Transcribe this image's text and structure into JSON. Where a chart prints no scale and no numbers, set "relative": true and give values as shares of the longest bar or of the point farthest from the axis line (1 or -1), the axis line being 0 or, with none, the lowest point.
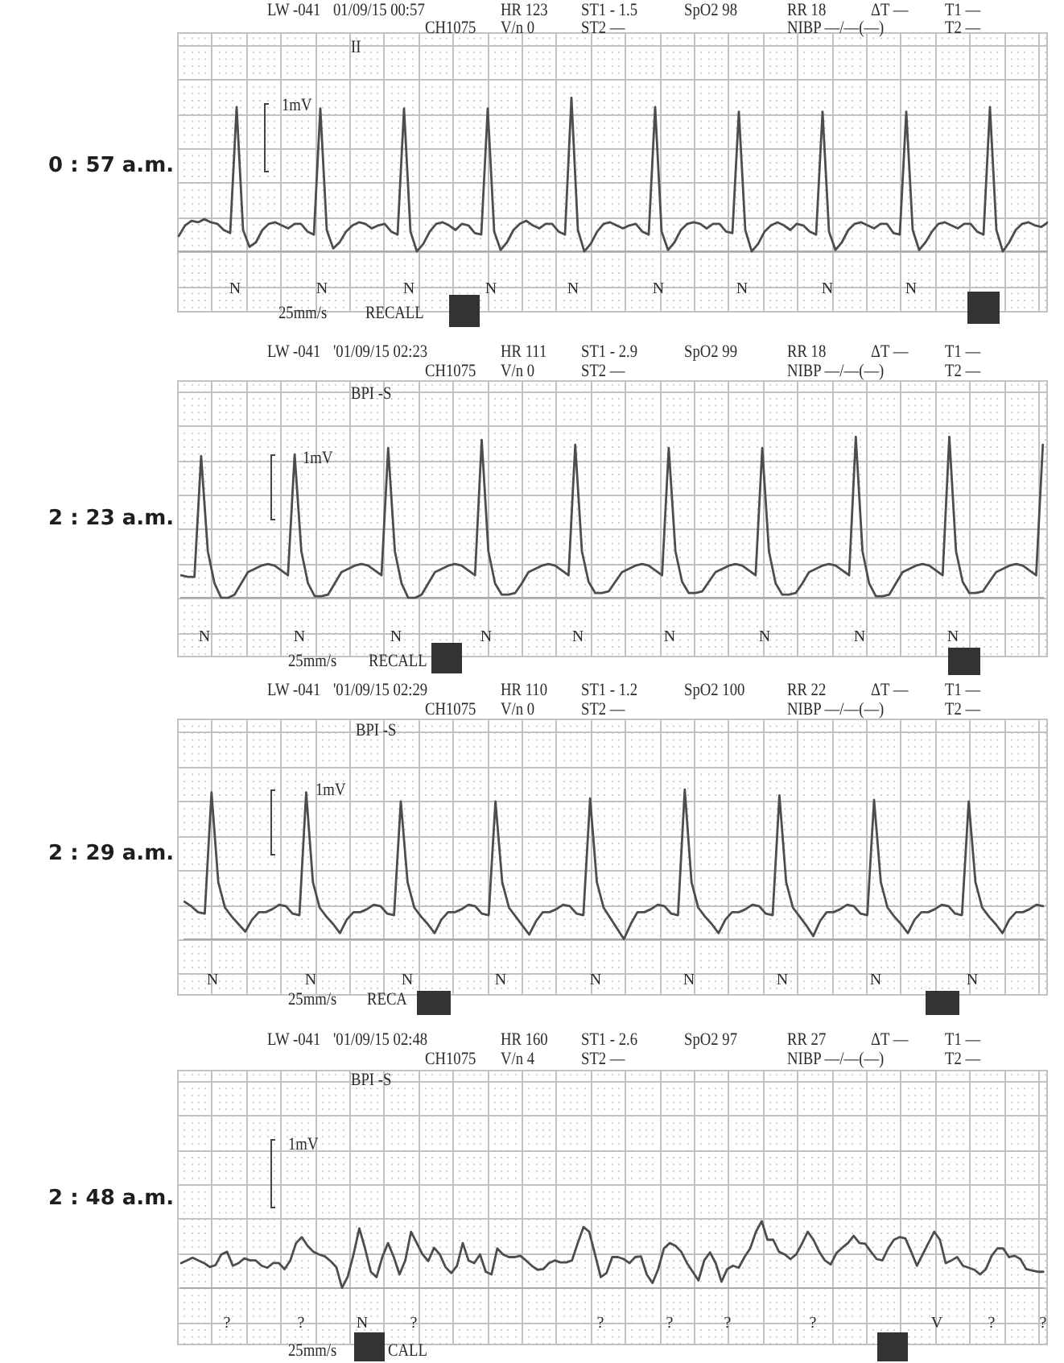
{
  "chart_data": [
    {
      "type": "line",
      "title": "0 : 57 a.m.",
      "relative": true,
      "grid": true,
      "marker": "none",
      "color": "#4d4d4d",
      "categories": [
        null,
        null,
        null,
        null,
        null,
        null,
        null,
        null,
        null,
        null,
        null,
        null,
        null,
        null,
        null,
        null,
        null,
        null,
        null,
        null,
        null,
        null,
        null,
        null,
        null,
        null,
        null,
        null,
        null,
        null,
        null,
        null,
        null,
        null,
        null,
        null,
        null,
        null,
        null,
        null,
        null,
        null,
        null,
        null,
        null,
        null,
        null,
        null,
        null,
        null,
        null,
        null,
        null,
        null,
        null,
        null,
        null,
        null,
        null,
        null,
        null,
        null,
        null,
        null,
        null,
        null,
        null,
        null,
        null,
        null,
        null,
        null,
        null,
        null,
        null,
        null,
        null,
        null,
        null,
        null,
        null,
        null,
        null,
        null,
        null,
        null,
        null,
        null,
        null,
        null,
        null,
        null,
        null,
        null,
        null,
        null,
        null,
        null,
        null,
        null,
        null,
        null,
        null,
        null,
        null,
        null,
        null,
        null,
        null,
        null,
        null,
        null,
        null,
        null,
        null,
        null,
        null,
        null,
        null,
        null,
        null,
        null,
        null,
        null,
        null,
        null,
        null,
        null,
        null,
        null,
        null,
        null,
        null,
        null,
        null,
        null
      ],
      "values": [
        0.1,
        0.17,
        0.2,
        0.19,
        0.21,
        0.19,
        0.18,
        0.14,
        0.12,
        0.94,
        0.14,
        0.03,
        0.06,
        0.14,
        0.18,
        0.19,
        0.17,
        0.15,
        0.18,
        0.18,
        0.13,
        0.11,
        0.93,
        0.14,
        0.02,
        0.06,
        0.13,
        0.17,
        0.19,
        0.18,
        0.15,
        0.17,
        0.18,
        0.13,
        0.11,
        0.93,
        0.13,
        0.0,
        0.05,
        0.13,
        0.18,
        0.19,
        0.17,
        0.14,
        0.18,
        0.17,
        0.12,
        0.11,
        0.93,
        0.13,
        0.01,
        0.06,
        0.14,
        0.18,
        0.2,
        0.17,
        0.15,
        0.18,
        0.18,
        0.13,
        0.11,
        1.0,
        0.14,
        0.0,
        0.05,
        0.13,
        0.18,
        0.19,
        0.17,
        0.15,
        0.17,
        0.18,
        0.13,
        0.11,
        0.94,
        0.13,
        0.01,
        0.06,
        0.14,
        0.18,
        0.19,
        0.18,
        0.15,
        0.18,
        0.18,
        0.13,
        0.12,
        0.91,
        0.14,
        0.0,
        0.05,
        0.13,
        0.17,
        0.19,
        0.17,
        0.14,
        0.18,
        0.17,
        0.13,
        0.11,
        0.91,
        0.13,
        0.01,
        0.06,
        0.14,
        0.18,
        0.19,
        0.17,
        0.15,
        0.18,
        0.18,
        0.12,
        0.11,
        0.91,
        0.14,
        0.01,
        0.06,
        0.13,
        0.18,
        0.19,
        0.17,
        0.15,
        0.18,
        0.18,
        0.13,
        0.11,
        0.94,
        0.14,
        0.0,
        0.06,
        0.14,
        0.18,
        0.19,
        0.17,
        0.16,
        0.19
      ],
      "annotations": [
        "LW -041",
        "01/09/15 00:57",
        "HR 123",
        "ST1 - 1.5",
        "SpO2 98",
        "RR 18",
        "ΔT —",
        "T1 —",
        "CH1075",
        "V/n 0",
        "ST2 —",
        "NIBP —/—(—)",
        "T2 —",
        "II",
        "1mV",
        "N",
        "N",
        "N",
        "N",
        "N",
        "N",
        "N",
        "N",
        "N",
        "25mm/s",
        "RECALL"
      ]
    },
    {
      "type": "line",
      "title": "2 : 23 a.m.",
      "relative": true,
      "grid": true,
      "marker": "none",
      "color": "#4d4d4d",
      "categories": [
        null,
        null,
        null,
        null,
        null,
        null,
        null,
        null,
        null,
        null,
        null,
        null,
        null,
        null,
        null,
        null,
        null,
        null,
        null,
        null,
        null,
        null,
        null,
        null,
        null,
        null,
        null,
        null,
        null,
        null,
        null,
        null,
        null,
        null,
        null,
        null,
        null,
        null,
        null,
        null,
        null,
        null,
        null,
        null,
        null,
        null,
        null,
        null,
        null,
        null,
        null,
        null,
        null,
        null,
        null,
        null,
        null,
        null,
        null,
        null,
        null,
        null,
        null,
        null,
        null,
        null,
        null,
        null,
        null,
        null,
        null,
        null,
        null,
        null,
        null,
        null,
        null,
        null,
        null,
        null,
        null,
        null,
        null,
        null,
        null,
        null,
        null,
        null,
        null,
        null,
        null,
        null,
        null,
        null,
        null,
        null,
        null,
        null,
        null,
        null,
        null,
        null,
        null,
        null,
        null,
        null,
        null,
        null,
        null,
        null,
        null,
        null,
        null,
        null,
        null,
        null,
        null,
        null,
        null,
        null,
        null,
        null,
        null,
        null,
        null,
        null,
        null,
        null,
        null,
        null
      ],
      "values": [
        0.14,
        0.13,
        0.13,
        0.88,
        0.29,
        0.09,
        0.0,
        0.0,
        0.02,
        0.09,
        0.16,
        0.18,
        0.2,
        0.21,
        0.2,
        0.17,
        0.14,
        0.89,
        0.29,
        0.09,
        0.01,
        0.01,
        0.02,
        0.09,
        0.16,
        0.18,
        0.2,
        0.21,
        0.2,
        0.17,
        0.14,
        0.93,
        0.29,
        0.09,
        0.0,
        0.0,
        0.02,
        0.09,
        0.16,
        0.18,
        0.2,
        0.21,
        0.2,
        0.17,
        0.14,
        0.98,
        0.29,
        0.09,
        0.02,
        0.02,
        0.03,
        0.09,
        0.16,
        0.18,
        0.2,
        0.21,
        0.2,
        0.17,
        0.14,
        0.95,
        0.29,
        0.1,
        0.03,
        0.03,
        0.04,
        0.1,
        0.16,
        0.18,
        0.2,
        0.21,
        0.2,
        0.17,
        0.14,
        0.93,
        0.29,
        0.1,
        0.03,
        0.03,
        0.04,
        0.1,
        0.16,
        0.18,
        0.2,
        0.21,
        0.2,
        0.17,
        0.14,
        0.93,
        0.29,
        0.09,
        0.02,
        0.02,
        0.03,
        0.09,
        0.16,
        0.18,
        0.2,
        0.21,
        0.2,
        0.17,
        0.14,
        1.0,
        0.29,
        0.09,
        0.01,
        0.01,
        0.02,
        0.09,
        0.16,
        0.18,
        0.2,
        0.21,
        0.2,
        0.17,
        0.14,
        1.0,
        0.29,
        0.1,
        0.03,
        0.03,
        0.04,
        0.1,
        0.16,
        0.18,
        0.2,
        0.21,
        0.2,
        0.17,
        0.14,
        0.95
      ],
      "annotations": [
        "LW -041",
        "'01/09/15 02:23",
        "HR 111",
        "ST1 - 2.9",
        "SpO2 99",
        "RR 18",
        "ΔT —",
        "T1 —",
        "CH1075",
        "V/n 0",
        "ST2 —",
        "NIBP —/—(—)",
        "T2 —",
        "BPI -S",
        "1mV",
        "N",
        "N",
        "N",
        "N",
        "N",
        "N",
        "N",
        "N",
        "N",
        "25mm/s",
        "RECALL"
      ]
    },
    {
      "type": "line",
      "title": "2 : 29 a.m.",
      "relative": true,
      "grid": true,
      "marker": "none",
      "color": "#4d4d4d",
      "categories": [
        null,
        null,
        null,
        null,
        null,
        null,
        null,
        null,
        null,
        null,
        null,
        null,
        null,
        null,
        null,
        null,
        null,
        null,
        null,
        null,
        null,
        null,
        null,
        null,
        null,
        null,
        null,
        null,
        null,
        null,
        null,
        null,
        null,
        null,
        null,
        null,
        null,
        null,
        null,
        null,
        null,
        null,
        null,
        null,
        null,
        null,
        null,
        null,
        null,
        null,
        null,
        null,
        null,
        null,
        null,
        null,
        null,
        null,
        null,
        null,
        null,
        null,
        null,
        null,
        null,
        null,
        null,
        null,
        null,
        null,
        null,
        null,
        null,
        null,
        null,
        null,
        null,
        null,
        null,
        null,
        null,
        null,
        null,
        null,
        null,
        null,
        null,
        null,
        null,
        null,
        null,
        null,
        null,
        null,
        null,
        null,
        null,
        null,
        null,
        null,
        null,
        null,
        null,
        null,
        null,
        null,
        null,
        null,
        null,
        null,
        null,
        null,
        null,
        null,
        null,
        null,
        null,
        null,
        null,
        null,
        null,
        null,
        null,
        null,
        null,
        null,
        null,
        null
      ],
      "values": [
        0.25,
        0.22,
        0.18,
        0.17,
        0.98,
        0.38,
        0.21,
        0.15,
        0.1,
        0.05,
        0.13,
        0.18,
        0.18,
        0.2,
        0.23,
        0.22,
        0.17,
        0.16,
        0.98,
        0.38,
        0.21,
        0.15,
        0.1,
        0.04,
        0.13,
        0.18,
        0.18,
        0.2,
        0.23,
        0.22,
        0.17,
        0.16,
        0.92,
        0.38,
        0.21,
        0.15,
        0.1,
        0.04,
        0.13,
        0.18,
        0.18,
        0.2,
        0.23,
        0.22,
        0.17,
        0.16,
        0.92,
        0.38,
        0.21,
        0.15,
        0.09,
        0.03,
        0.12,
        0.18,
        0.18,
        0.2,
        0.23,
        0.22,
        0.17,
        0.16,
        0.94,
        0.38,
        0.21,
        0.14,
        0.07,
        0.0,
        0.1,
        0.18,
        0.18,
        0.2,
        0.23,
        0.22,
        0.17,
        0.16,
        1.0,
        0.38,
        0.21,
        0.15,
        0.1,
        0.04,
        0.13,
        0.18,
        0.18,
        0.2,
        0.23,
        0.22,
        0.17,
        0.16,
        0.96,
        0.38,
        0.21,
        0.15,
        0.09,
        0.02,
        0.12,
        0.18,
        0.18,
        0.2,
        0.23,
        0.22,
        0.17,
        0.16,
        0.93,
        0.38,
        0.21,
        0.15,
        0.1,
        0.04,
        0.13,
        0.18,
        0.18,
        0.2,
        0.23,
        0.22,
        0.17,
        0.16,
        0.92,
        0.38,
        0.21,
        0.15,
        0.1,
        0.04,
        0.13,
        0.18,
        0.18,
        0.2,
        0.23,
        0.22
      ],
      "annotations": [
        "LW -041",
        "'01/09/15 02:29",
        "HR 110",
        "ST1 - 1.2",
        "SpO2 100",
        "RR 22",
        "ΔT —",
        "T1 —",
        "CH1075",
        "V/n 0",
        "ST2 —",
        "NIBP —/—(—)",
        "T2 —",
        "BPI -S",
        "1mV",
        "N",
        "N",
        "N",
        "N",
        "N",
        "N",
        "N",
        "N",
        "N",
        "25mm/s",
        "RECA"
      ]
    },
    {
      "type": "line",
      "title": "2 : 48 a.m.",
      "relative": true,
      "grid": true,
      "marker": "none",
      "color": "#4d4d4d",
      "categories": [
        null,
        null,
        null,
        null,
        null,
        null,
        null,
        null,
        null,
        null,
        null,
        null,
        null,
        null,
        null,
        null,
        null,
        null,
        null,
        null,
        null,
        null,
        null,
        null,
        null,
        null,
        null,
        null,
        null,
        null,
        null,
        null,
        null,
        null,
        null,
        null,
        null,
        null,
        null,
        null,
        null,
        null,
        null,
        null,
        null,
        null,
        null,
        null,
        null,
        null,
        null,
        null,
        null,
        null,
        null,
        null,
        null,
        null,
        null,
        null,
        null,
        null,
        null,
        null,
        null,
        null,
        null,
        null,
        null,
        null,
        null,
        null,
        null,
        null,
        null,
        null,
        null,
        null,
        null,
        null,
        null,
        null,
        null,
        null,
        null,
        null,
        null,
        null,
        null,
        null,
        null,
        null,
        null,
        null,
        null,
        null,
        null,
        null,
        null,
        null,
        null,
        null,
        null,
        null,
        null,
        null,
        null,
        null,
        null,
        null,
        null,
        null,
        null,
        null,
        null,
        null,
        null,
        null,
        null,
        null,
        null,
        null,
        null,
        null,
        null,
        null,
        null,
        null,
        null,
        null,
        null,
        null,
        null,
        null,
        null,
        null,
        null,
        null,
        null,
        null,
        null,
        null,
        null,
        null,
        null,
        null,
        null,
        null,
        null,
        null,
        null
      ],
      "values": [
        0.37,
        0.41,
        0.45,
        0.41,
        0.37,
        0.31,
        0.34,
        0.5,
        0.54,
        0.33,
        0.37,
        0.44,
        0.41,
        0.41,
        0.33,
        0.3,
        0.37,
        0.37,
        0.28,
        0.41,
        0.67,
        0.76,
        0.63,
        0.54,
        0.5,
        0.47,
        0.4,
        0.31,
        0.0,
        0.17,
        0.5,
        0.89,
        0.59,
        0.24,
        0.16,
        0.46,
        0.67,
        0.46,
        0.2,
        0.41,
        0.84,
        0.67,
        0.5,
        0.4,
        0.6,
        0.5,
        0.31,
        0.22,
        0.33,
        0.67,
        0.41,
        0.37,
        0.5,
        0.24,
        0.2,
        0.59,
        0.5,
        0.46,
        0.46,
        0.48,
        0.41,
        0.33,
        0.27,
        0.28,
        0.37,
        0.41,
        0.38,
        0.38,
        0.41,
        0.67,
        0.91,
        0.84,
        0.5,
        0.16,
        0.22,
        0.46,
        0.46,
        0.43,
        0.37,
        0.46,
        0.47,
        0.2,
        0.07,
        0.28,
        0.59,
        0.67,
        0.63,
        0.54,
        0.37,
        0.24,
        0.11,
        0.41,
        0.53,
        0.37,
        0.09,
        0.28,
        0.33,
        0.3,
        0.46,
        0.59,
        0.84,
        1.0,
        0.72,
        0.72,
        0.54,
        0.5,
        0.43,
        0.5,
        0.66,
        0.84,
        0.72,
        0.54,
        0.41,
        0.35,
        0.52,
        0.6,
        0.67,
        0.78,
        0.67,
        0.66,
        0.54,
        0.43,
        0.41,
        0.59,
        0.72,
        0.76,
        0.74,
        0.54,
        0.33,
        0.5,
        0.67,
        0.84,
        0.72,
        0.37,
        0.41,
        0.46,
        0.33,
        0.3,
        0.27,
        0.2,
        0.28,
        0.48,
        0.59,
        0.59,
        0.46,
        0.48,
        0.43,
        0.28,
        0.26,
        0.24,
        0.24
      ],
      "annotations": [
        "LW -041",
        "'01/09/15 02:48",
        "HR 160",
        "ST1 - 2.6",
        "SpO2 97",
        "RR 27",
        "ΔT —",
        "T1 —",
        "CH1075",
        "V/n 4",
        "ST2 —",
        "NIBP —/—(—)",
        "T2 —",
        "BPI -S",
        "1mV",
        "?",
        "?",
        "N",
        "?",
        "?",
        "?",
        "?",
        "?",
        "V",
        "?",
        "?",
        "25mm/s",
        "CALL"
      ]
    }
  ]
}
